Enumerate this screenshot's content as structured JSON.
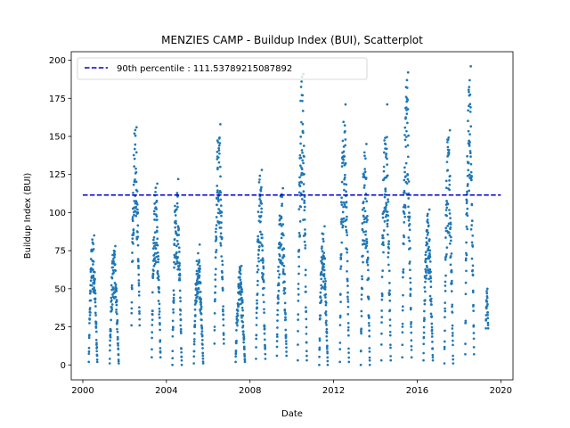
{
  "chart_data": {
    "type": "scatter",
    "title": "MENZIES CAMP - Buildup Index (BUI), Scatterplot",
    "xlabel": "Date",
    "ylabel": "Buildup Index (BUI)",
    "xlim": [
      "1999-06-13",
      "2020-08-01"
    ],
    "ylim": [
      -9.8,
      205.6
    ],
    "x_ticks": [
      "2000",
      "2004",
      "2008",
      "2012",
      "2016",
      "2020"
    ],
    "y_ticks": [
      0,
      25,
      50,
      75,
      100,
      125,
      150,
      175,
      200
    ],
    "grid": false,
    "legend_position": "top-left",
    "colors": {
      "points": "#1f77b4",
      "percentile_line": "#0000cc"
    },
    "percentile_line": {
      "name": "90th percentile : 111.53789215087892",
      "value": 111.53789215087892,
      "x_start": "2000-01-01",
      "x_end": "2020-01-01"
    },
    "series": [
      {
        "marker": "dot",
        "seasons": [
          {
            "start": "2000-04-15",
            "end": "2000-09-10",
            "peak": 85,
            "min": 2
          },
          {
            "start": "2001-04-15",
            "end": "2001-09-20",
            "peak": 78,
            "min": 1
          },
          {
            "start": "2002-05-01",
            "end": "2002-09-20",
            "peak": 156,
            "min": 26
          },
          {
            "start": "2003-04-20",
            "end": "2003-09-20",
            "peak": 119,
            "min": 5
          },
          {
            "start": "2004-04-15",
            "end": "2004-09-25",
            "peak": 122,
            "min": 0
          },
          {
            "start": "2005-04-25",
            "end": "2005-10-05",
            "peak": 79,
            "min": 1
          },
          {
            "start": "2006-04-20",
            "end": "2006-10-01",
            "peak": 158,
            "min": 14
          },
          {
            "start": "2007-04-25",
            "end": "2007-10-05",
            "peak": 65,
            "min": 2
          },
          {
            "start": "2008-04-15",
            "end": "2008-09-25",
            "peak": 128,
            "min": 4
          },
          {
            "start": "2009-04-15",
            "end": "2009-09-30",
            "peak": 116,
            "min": 6
          },
          {
            "start": "2010-04-15",
            "end": "2010-09-20",
            "peak": 191,
            "min": 3
          },
          {
            "start": "2011-04-25",
            "end": "2011-09-20",
            "peak": 91,
            "min": 0
          },
          {
            "start": "2012-04-20",
            "end": "2012-09-25",
            "peak": 171,
            "min": 2
          },
          {
            "start": "2013-04-20",
            "end": "2013-09-25",
            "peak": 145,
            "min": 0
          },
          {
            "start": "2014-04-15",
            "end": "2014-09-25",
            "peak": 171,
            "min": 3
          },
          {
            "start": "2015-04-15",
            "end": "2015-09-25",
            "peak": 192,
            "min": 5
          },
          {
            "start": "2016-04-20",
            "end": "2016-10-01",
            "peak": 102,
            "min": 3
          },
          {
            "start": "2017-04-20",
            "end": "2017-09-20",
            "peak": 154,
            "min": 1
          },
          {
            "start": "2018-04-20",
            "end": "2018-09-20",
            "peak": 196,
            "min": 7
          },
          {
            "start": "2019-04-15",
            "end": "2019-05-25",
            "peak": 50,
            "min": 24
          }
        ]
      }
    ]
  }
}
